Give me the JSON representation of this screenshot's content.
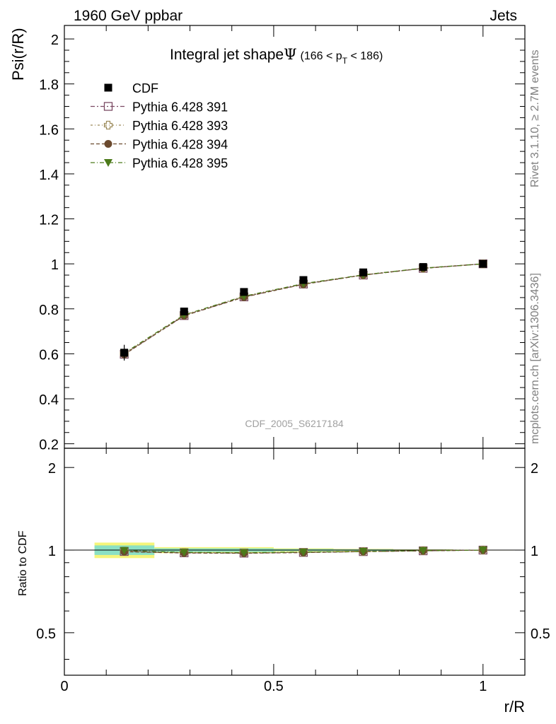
{
  "header": {
    "left": "1960 GeV ppbar",
    "right": "Jets"
  },
  "side_text": {
    "rivet": "Rivet 3.1.10, ≥ 2.7M events",
    "mcplots": "mcplots.cern.ch [arXiv:1306.3436]"
  },
  "chart_data": {
    "type": "line",
    "title_main": "Integral jet shape",
    "title_symbol": "Ψ",
    "title_range_pre": "(166 < p",
    "title_range_sub": "T",
    "title_range_post": " < 186)",
    "watermark": "CDF_2005_S6217184",
    "ylabel": "Psi(r/R)",
    "xlabel": "r/R",
    "ratio_ylabel": "Ratio to CDF",
    "xlim": [
      0,
      1.1
    ],
    "ylim": [
      0.18,
      2.06
    ],
    "ratio_ylim": [
      0.35,
      2.35
    ],
    "x_ticks": [
      "0",
      "0.5",
      "1"
    ],
    "y_ticks": [
      "0.2",
      "0.4",
      "0.6",
      "0.8",
      "1",
      "1.2",
      "1.4",
      "1.6",
      "1.8",
      "2"
    ],
    "ratio_y_ticks": [
      "0.5",
      "1",
      "2"
    ],
    "x": [
      0.143,
      0.286,
      0.429,
      0.571,
      0.714,
      0.857,
      1.0
    ],
    "data": {
      "name": "CDF",
      "values": [
        0.605,
        0.788,
        0.875,
        0.928,
        0.962,
        0.986,
        1.0
      ],
      "errors": [
        0.035,
        0.016,
        0.012,
        0.008,
        0.005,
        0.003,
        0.001
      ]
    },
    "ratio_bands": [
      {
        "x0": 0.072,
        "x1": 0.215,
        "inner": 0.04,
        "outer": 0.065
      },
      {
        "x0": 0.215,
        "x1": 0.5,
        "inner": 0.015,
        "outer": 0.025
      },
      {
        "x0": 0.5,
        "x1": 0.643,
        "inner": 0.009,
        "outer": 0.015
      },
      {
        "x0": 0.643,
        "x1": 0.786,
        "inner": 0.006,
        "outer": 0.01
      },
      {
        "x0": 0.786,
        "x1": 0.929,
        "inner": 0.004,
        "outer": 0.006
      },
      {
        "x0": 0.929,
        "x1": 1.072,
        "inner": 0.002,
        "outer": 0.003
      }
    ],
    "series": [
      {
        "name": "Pythia 6.428 391",
        "color": "#7b4a63",
        "marker": "open-square",
        "values": [
          0.598,
          0.77,
          0.853,
          0.91,
          0.95,
          0.98,
          1.0
        ]
      },
      {
        "name": "Pythia 6.428 393",
        "color": "#9c8a5a",
        "marker": "open-cross",
        "values": [
          0.6,
          0.772,
          0.855,
          0.911,
          0.951,
          0.981,
          1.0
        ]
      },
      {
        "name": "Pythia 6.428 394",
        "color": "#6b4a2e",
        "marker": "filled-circle",
        "values": [
          0.597,
          0.769,
          0.852,
          0.909,
          0.95,
          0.98,
          1.0
        ]
      },
      {
        "name": "Pythia 6.428 395",
        "color": "#4c7a1a",
        "marker": "filled-triangle-down",
        "values": [
          0.603,
          0.773,
          0.856,
          0.912,
          0.951,
          0.981,
          1.0
        ]
      }
    ],
    "colors": {
      "band_inner": "#8be0c4",
      "band_outer": "#f5f57a",
      "data": "#000000"
    }
  }
}
